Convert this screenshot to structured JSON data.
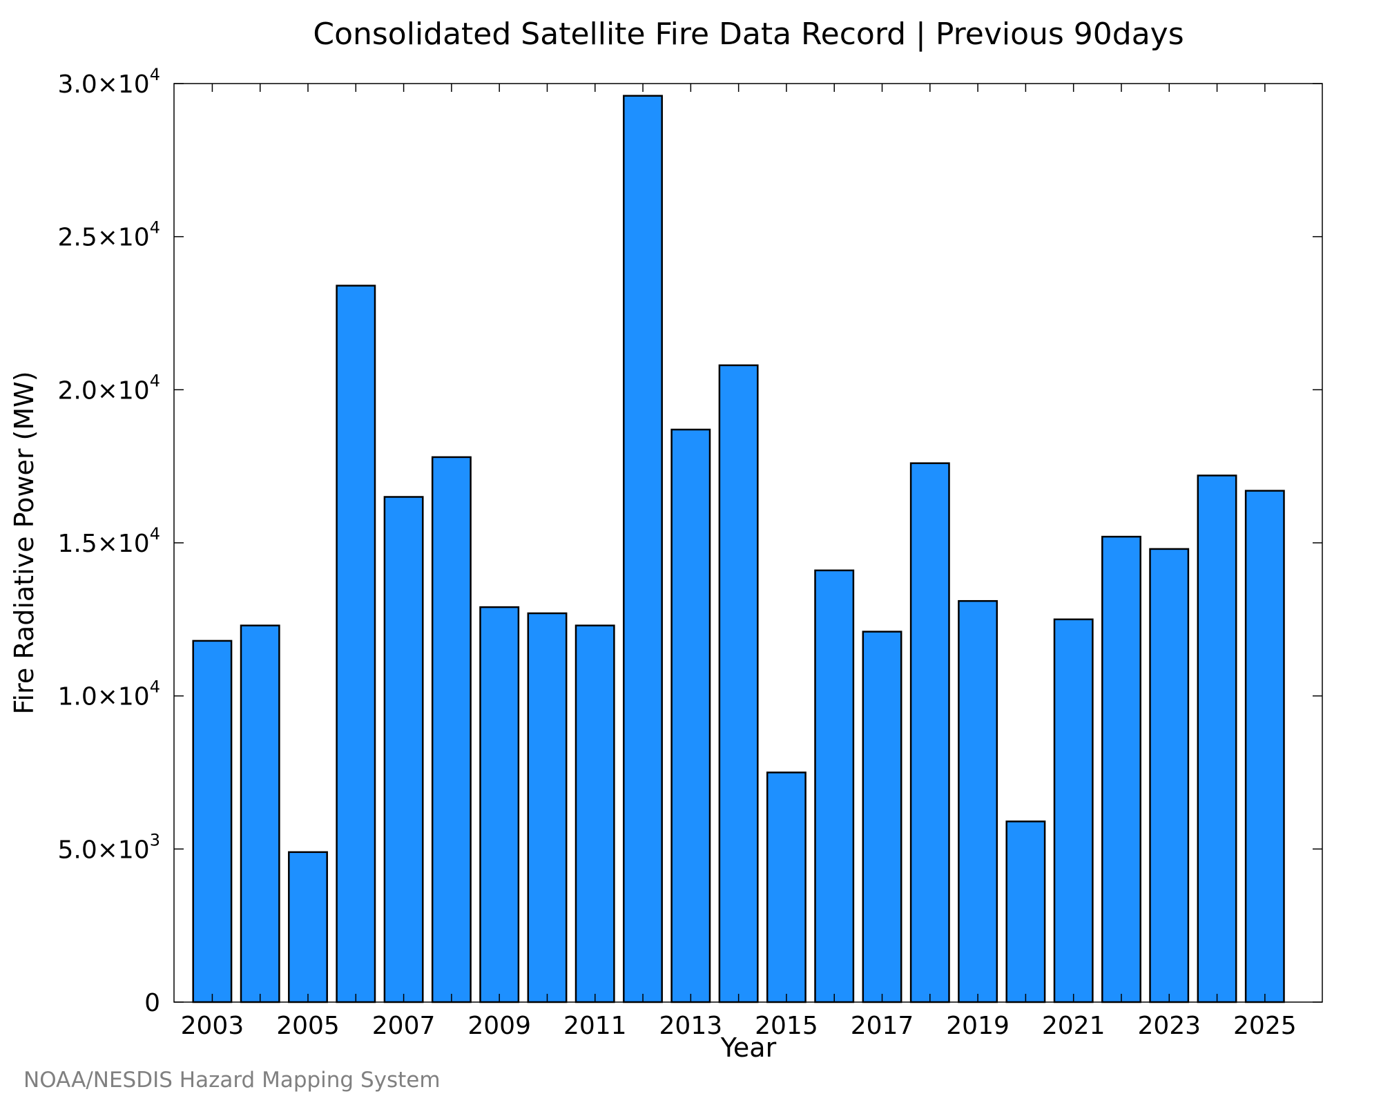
{
  "chart_data": {
    "type": "bar",
    "title": "Consolidated Satellite Fire Data Record | Previous 90days",
    "xlabel": "Year",
    "ylabel": "Fire Radiative Power (MW)",
    "credit": "NOAA/NESDIS Hazard Mapping System",
    "bar_color": "#1e90ff",
    "bar_edge_color": "#000000",
    "categories": [
      "2003",
      "2004",
      "2005",
      "2006",
      "2007",
      "2008",
      "2009",
      "2010",
      "2011",
      "2012",
      "2013",
      "2014",
      "2015",
      "2016",
      "2017",
      "2018",
      "2019",
      "2020",
      "2021",
      "2022",
      "2023",
      "2024",
      "2025"
    ],
    "values": [
      11800,
      12300,
      4900,
      23400,
      16500,
      17800,
      12900,
      12700,
      12300,
      29600,
      18700,
      20800,
      7500,
      14100,
      12100,
      17600,
      13100,
      5900,
      12500,
      15200,
      14800,
      17200,
      16700
    ],
    "xlim": [
      2002.2,
      2026.2
    ],
    "ylim": [
      0,
      30000
    ],
    "x_tick_labels": [
      "2003",
      "2005",
      "2007",
      "2009",
      "2011",
      "2013",
      "2015",
      "2017",
      "2019",
      "2021",
      "2023",
      "2025"
    ],
    "y_ticks": [
      {
        "value": 0,
        "mantissa": "0",
        "exponent": ""
      },
      {
        "value": 5000,
        "mantissa": "5.0×10",
        "exponent": "3"
      },
      {
        "value": 10000,
        "mantissa": "1.0×10",
        "exponent": "4"
      },
      {
        "value": 15000,
        "mantissa": "1.5×10",
        "exponent": "4"
      },
      {
        "value": 20000,
        "mantissa": "2.0×10",
        "exponent": "4"
      },
      {
        "value": 25000,
        "mantissa": "2.5×10",
        "exponent": "4"
      },
      {
        "value": 30000,
        "mantissa": "3.0×10",
        "exponent": "4"
      }
    ],
    "grid": false,
    "legend": "none"
  }
}
